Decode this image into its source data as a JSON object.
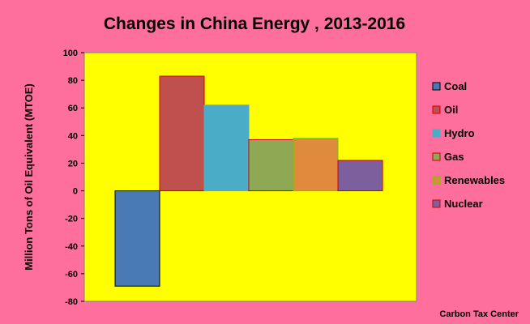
{
  "chart_data": {
    "type": "bar",
    "title": "Changes in China Energy , 2013-2016",
    "ylabel": "Million Tons of Oil Equivalent (MTOE)",
    "xlabel": "",
    "ylim": [
      -80,
      100
    ],
    "yticks": [
      -80,
      -60,
      -40,
      -20,
      0,
      20,
      40,
      60,
      80,
      100
    ],
    "grid": false,
    "legend_position": "right",
    "plot_background": "#ffff00",
    "series": [
      {
        "name": "Coal",
        "value": -69,
        "color": "#4a7ab6",
        "border": "#000000"
      },
      {
        "name": "Oil",
        "value": 83,
        "color": "#c0504d",
        "border": "#cc0000"
      },
      {
        "name": "Hydro",
        "value": 62,
        "color": "#4aacc6",
        "border": "#4aacc6"
      },
      {
        "name": "Gas",
        "value": 37,
        "color": "#8ea853",
        "border": "#cc0000"
      },
      {
        "name": "Renewables",
        "value": 38,
        "color": "#e08a3e",
        "border": "#66cc00"
      },
      {
        "name": "Nuclear",
        "value": 22,
        "color": "#7d5f9e",
        "border": "#cc0000"
      }
    ]
  },
  "footer": {
    "credit": "Carbon Tax Center"
  }
}
